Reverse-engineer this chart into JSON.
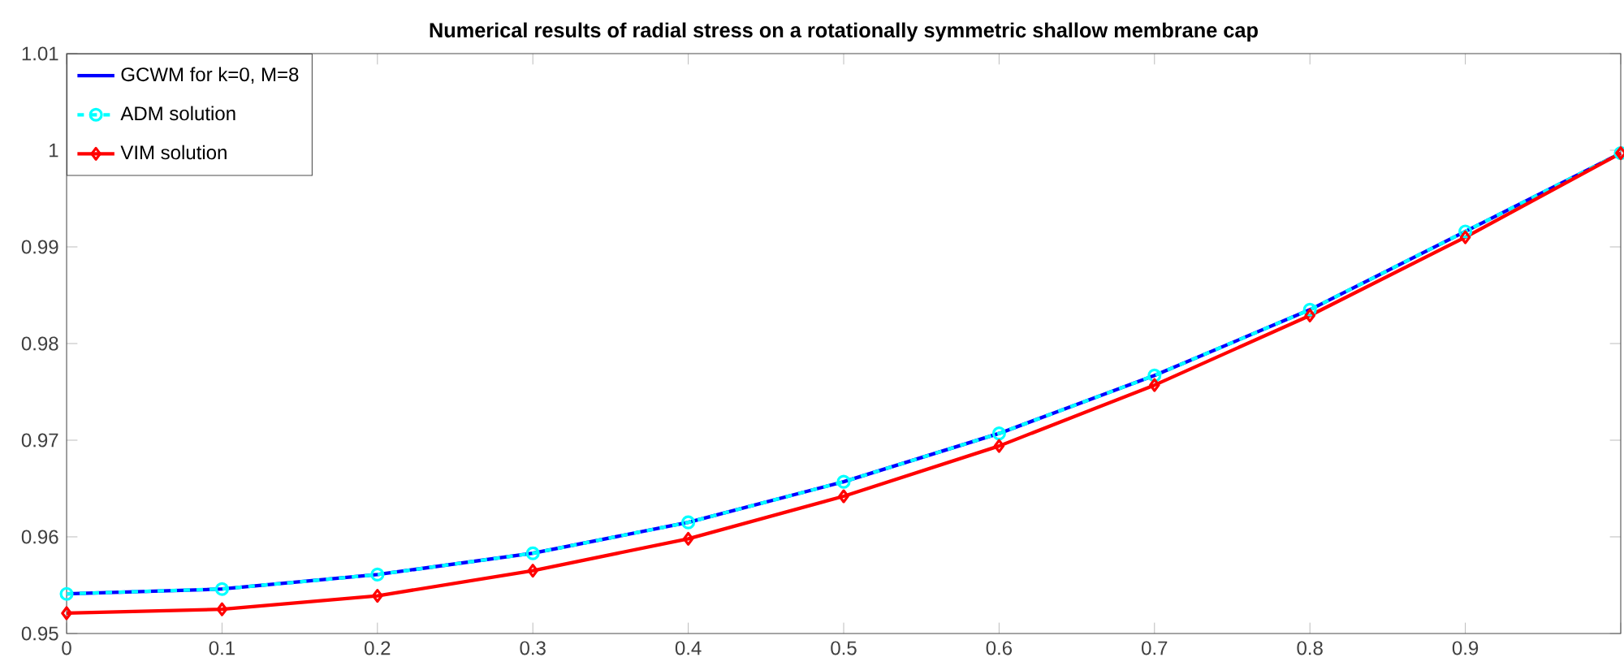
{
  "chart_data": {
    "type": "line",
    "title": "Numerical results of radial stress on a rotationally symmetric shallow membrane cap",
    "x": [
      0,
      0.1,
      0.2,
      0.3,
      0.4,
      0.5,
      0.6,
      0.7,
      0.8,
      0.9,
      1.0
    ],
    "series": [
      {
        "name": "GCWM for k=0, M=8",
        "color": "#0000ff",
        "marker": "none",
        "line_style": "solid",
        "values": [
          0.9541,
          0.9546,
          0.9561,
          0.9583,
          0.9615,
          0.9657,
          0.9707,
          0.9767,
          0.9835,
          0.9916,
          0.9997
        ]
      },
      {
        "name": "ADM solution",
        "color": "#00ffff",
        "marker": "circle",
        "line_style": "dashed",
        "values": [
          0.9541,
          0.9546,
          0.9561,
          0.9583,
          0.9615,
          0.9657,
          0.9707,
          0.9767,
          0.9835,
          0.9916,
          0.9997
        ]
      },
      {
        "name": "VIM solution",
        "color": "#ff0000",
        "marker": "diamond",
        "line_style": "solid",
        "values": [
          0.9521,
          0.9525,
          0.9539,
          0.9565,
          0.9598,
          0.9642,
          0.9694,
          0.9757,
          0.9829,
          0.991,
          0.9997
        ]
      }
    ],
    "xlim": [
      0,
      1
    ],
    "ylim": [
      0.95,
      1.01
    ],
    "xticks": [
      0,
      0.1,
      0.2,
      0.3,
      0.4,
      0.5,
      0.6,
      0.7,
      0.8,
      0.9,
      {
        "value": 1,
        "label": null
      }
    ],
    "yticks": [
      0.95,
      0.96,
      0.97,
      0.98,
      0.99,
      1,
      1.01
    ],
    "grid": false,
    "legend": "top left"
  }
}
